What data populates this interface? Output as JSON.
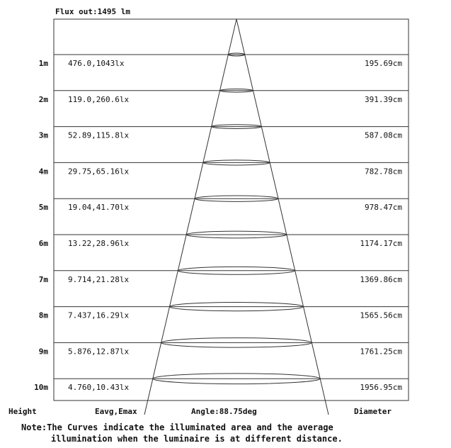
{
  "flux_label": "Flux out:1495 lm",
  "rows": [
    {
      "height": "1m",
      "illum": "476.0,1043lx",
      "diameter": "195.69cm"
    },
    {
      "height": "2m",
      "illum": "119.0,260.6lx",
      "diameter": "391.39cm"
    },
    {
      "height": "3m",
      "illum": "52.89,115.8lx",
      "diameter": "587.08cm"
    },
    {
      "height": "4m",
      "illum": "29.75,65.16lx",
      "diameter": "782.78cm"
    },
    {
      "height": "5m",
      "illum": "19.04,41.70lx",
      "diameter": "978.47cm"
    },
    {
      "height": "6m",
      "illum": "13.22,28.96lx",
      "diameter": "1174.17cm"
    },
    {
      "height": "7m",
      "illum": "9.714,21.28lx",
      "diameter": "1369.86cm"
    },
    {
      "height": "8m",
      "illum": "7.437,16.29lx",
      "diameter": "1565.56cm"
    },
    {
      "height": "9m",
      "illum": "5.876,12.87lx",
      "diameter": "1761.25cm"
    },
    {
      "height": "10m",
      "illum": "4.760,10.43lx",
      "diameter": "1956.95cm"
    }
  ],
  "footer": {
    "height_label": "Height",
    "illum_label": "Eavg,Emax",
    "angle_label": "Angle:88.75deg",
    "diameter_label": "Diameter"
  },
  "note": {
    "line1": "Note:The Curves indicate the illuminated area and the average",
    "line2": "illumination when the luminaire is at different distance."
  }
}
